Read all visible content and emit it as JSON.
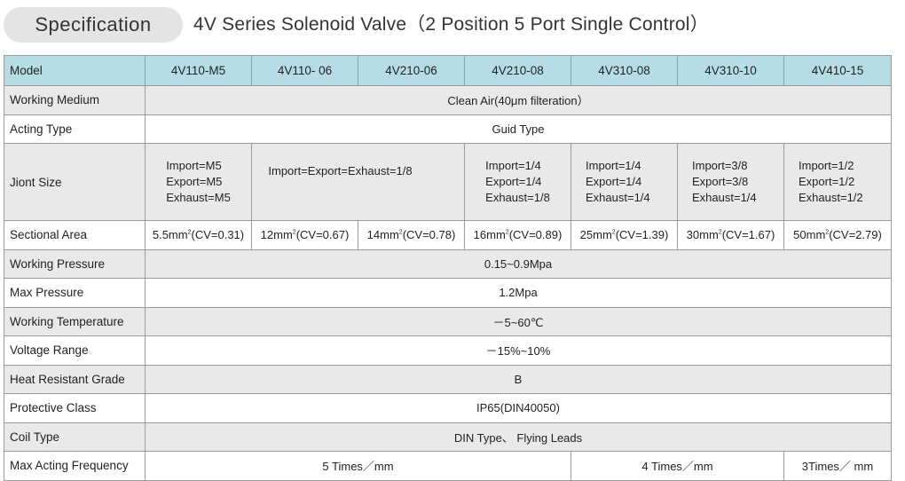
{
  "header": {
    "badge": "Specification",
    "title": "4V Series Solenoid Valve（2 Position 5 Port  Single Control）"
  },
  "table": {
    "model_label": "Model",
    "models": [
      "4V110-M5",
      "4V110- 06",
      "4V210-06",
      "4V210-08",
      "4V310-08",
      "4V310-10",
      "4V410-15"
    ],
    "working_medium": {
      "label": "Working Medium",
      "value": "Clean Air(40μm filteration）"
    },
    "acting_type": {
      "label": "Acting Type",
      "value": "Guid Type"
    },
    "jiont_size": {
      "label": "Jiont Size",
      "col1": [
        "Import=M5",
        "Export=M5",
        "Exhaust=M5"
      ],
      "col23": "Import=Export=Exhaust=1/8",
      "col4": [
        "Import=1/4",
        "Export=1/4",
        "Exhaust=1/8"
      ],
      "col5": [
        "Import=1/4",
        "Export=1/4",
        "Exhaust=1/4"
      ],
      "col6": [
        "Import=3/8",
        "Export=3/8",
        "Exhaust=1/4"
      ],
      "col7": [
        "Import=1/2",
        "Export=1/2",
        "Exhaust=1/2"
      ]
    },
    "sectional_area": {
      "label": "Sectional Area",
      "unit_sup": "2",
      "values": [
        {
          "pre": "5.5mm",
          "post": "(CV=0.31)"
        },
        {
          "pre": "12mm",
          "post": "(CV=0.67)"
        },
        {
          "pre": "14mm",
          "post": "(CV=0.78)"
        },
        {
          "pre": "16mm",
          "post": "(CV=0.89)"
        },
        {
          "pre": "25mm",
          "post": "(CV=1.39)"
        },
        {
          "pre": "30mm",
          "post": "(CV=1.67)"
        },
        {
          "pre": "50mm",
          "post": "(CV=2.79)"
        }
      ]
    },
    "working_pressure": {
      "label": "Working Pressure",
      "value": "0.15~0.9Mpa"
    },
    "max_pressure": {
      "label": "Max Pressure",
      "value": "1.2Mpa"
    },
    "working_temperature": {
      "label": "Working Temperature",
      "value": "－5~60℃"
    },
    "voltage_range": {
      "label": "Voltage Range",
      "value": "－15%~10%"
    },
    "heat_resistant_grade": {
      "label": "Heat Resistant Grade",
      "value": "B"
    },
    "protective_class": {
      "label": "Protective Class",
      "value": "IP65(DIN40050)"
    },
    "coil_type": {
      "label": "Coil Type",
      "value": "DIN Type、 Flying Leads"
    },
    "max_acting_frequency": {
      "label": "Max Acting Frequency",
      "group1": "5  Times／mm",
      "group2": "4  Times／mm",
      "group3": "3Times／ mm"
    }
  }
}
